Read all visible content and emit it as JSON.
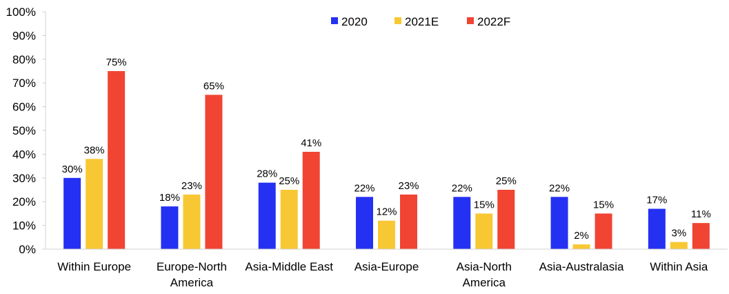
{
  "chart_data": {
    "type": "bar",
    "title": "",
    "xlabel": "",
    "ylabel": "",
    "ylim": [
      0,
      100
    ],
    "yticks": [
      "0%",
      "10%",
      "20%",
      "30%",
      "40%",
      "50%",
      "60%",
      "70%",
      "80%",
      "90%",
      "100%"
    ],
    "categories": [
      [
        "Within Europe"
      ],
      [
        "Europe-North",
        "America"
      ],
      [
        "Asia-Middle East"
      ],
      [
        "Asia-Europe"
      ],
      [
        "Asia-North",
        "America"
      ],
      [
        "Asia-Australasia"
      ],
      [
        "Within Asia"
      ]
    ],
    "series": [
      {
        "name": "2020",
        "color": "#2431f2",
        "values": [
          30,
          18,
          28,
          22,
          22,
          22,
          17
        ]
      },
      {
        "name": "2021E",
        "color": "#f8c834",
        "values": [
          38,
          23,
          25,
          12,
          15,
          2,
          3
        ]
      },
      {
        "name": "2022F",
        "color": "#f14433",
        "values": [
          75,
          65,
          41,
          23,
          25,
          15,
          11
        ]
      }
    ],
    "value_suffix": "%",
    "legend_position": "top-center",
    "grid": false
  }
}
